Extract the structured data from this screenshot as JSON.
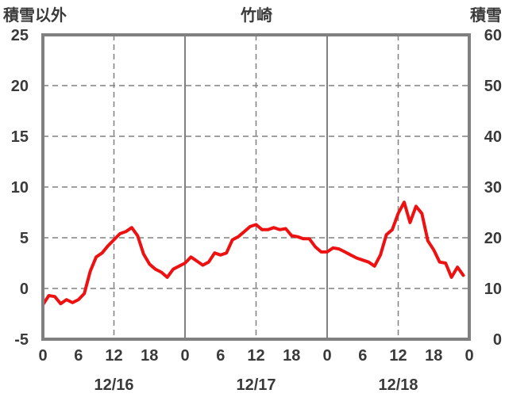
{
  "chart_data": {
    "type": "line",
    "title": "竹崎",
    "left_axis_label": "積雪以外",
    "right_axis_label": "積雪",
    "left_ylim": [
      -5,
      25
    ],
    "left_yticks": [
      "25",
      "20",
      "15",
      "10",
      "5",
      "0",
      "-5"
    ],
    "right_ylim": [
      0,
      60
    ],
    "right_yticks": [
      "60",
      "50",
      "40",
      "30",
      "20",
      "10",
      "0"
    ],
    "xlim": [
      0,
      72
    ],
    "xtick_labels": [
      "0",
      "6",
      "12",
      "18",
      "0",
      "6",
      "12",
      "18",
      "0",
      "6",
      "12",
      "18",
      "0"
    ],
    "date_labels": [
      "12/16",
      "12/17",
      "12/18"
    ],
    "grid": true,
    "colors": {
      "series1": "#ee1111",
      "series2": "#7a4fb5",
      "frame": "#808080",
      "grid": "#808080"
    },
    "series": [
      {
        "axis": "left",
        "x": [
          0,
          1,
          2,
          3,
          4,
          5,
          6,
          7,
          8,
          9,
          10,
          11,
          12,
          13,
          14,
          15,
          16,
          17,
          18,
          19,
          20,
          21,
          22,
          23,
          24,
          25,
          26,
          27,
          28,
          29,
          30,
          31,
          32,
          33,
          34,
          35,
          36,
          37,
          38,
          39,
          40,
          41,
          42,
          43,
          44,
          45,
          46,
          47,
          48,
          49,
          50,
          51,
          52,
          53,
          54,
          55,
          56,
          57,
          58,
          59,
          60,
          61,
          62,
          63,
          64,
          65,
          66,
          67,
          68,
          69,
          70,
          71
        ],
        "values": [
          -1.6,
          -0.7,
          -0.8,
          -1.5,
          -1.1,
          -1.4,
          -1.1,
          -0.5,
          1.7,
          3.1,
          3.5,
          4.2,
          4.8,
          5.4,
          5.6,
          6.0,
          5.2,
          3.4,
          2.4,
          1.9,
          1.6,
          1.1,
          1.9,
          2.2,
          2.5,
          3.1,
          2.7,
          2.3,
          2.6,
          3.5,
          3.3,
          3.5,
          4.8,
          5.1,
          5.6,
          6.1,
          6.3,
          5.8,
          5.8,
          6.0,
          5.8,
          5.9,
          5.2,
          5.1,
          4.9,
          4.9,
          4.1,
          3.6,
          3.6,
          4.0,
          3.9,
          3.6,
          3.3,
          3.0,
          2.8,
          2.6,
          2.2,
          3.3,
          5.3,
          5.8,
          7.4,
          8.5,
          6.5,
          8.1,
          7.4,
          4.7,
          3.8,
          2.6,
          2.5,
          1.1,
          2.1,
          1.3
        ]
      },
      {
        "axis": "left",
        "x": [
          0,
          72
        ],
        "values": [
          -5,
          -5
        ]
      }
    ]
  }
}
